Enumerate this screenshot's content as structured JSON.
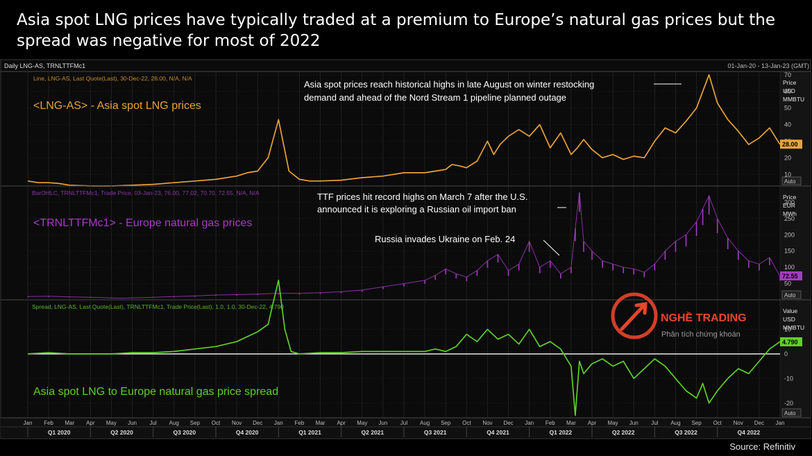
{
  "headline": "Asia spot LNG prices have typically traded at a premium to Europe’s natural gas prices but the spread was negative for most of 2022",
  "source": "Source: Refinitiv",
  "terminal": {
    "header_left": "Daily LNG-AS, TRNLTTFMc1",
    "header_right": "01-Jan-20 - 13-Jan-23 (GMT)",
    "auto_label": "Auto"
  },
  "watermark": {
    "brand": "NGHỀ TRADING",
    "tagline": "Phân tích chứng khoán",
    "color": "#e8452c"
  },
  "colors": {
    "asia": "#e8a33a",
    "europe": "#a63bc4",
    "spread": "#5fcf2a",
    "axis_bg": "#0b0b0b"
  },
  "chart_data": [
    {
      "type": "line",
      "panel": "asia",
      "series_name": "<LNG-AS> - Asia spot LNG prices",
      "legend_info": "Line, LNG-AS, Last Quote(Last), 30-Dec-22, 28.00, N/A, N/A",
      "unit_label": [
        "Price",
        "USD",
        "MMBTU"
      ],
      "yticks": [
        10,
        20,
        30,
        40,
        50,
        60,
        70
      ],
      "ylim": [
        3,
        72
      ],
      "last_value": "28.00",
      "annotation": "Asia spot prices reach historical highs in late August on winter restocking demand and ahead of the Nord Stream 1 pipeline planned outage",
      "x": [
        0,
        0.5,
        1,
        1.5,
        2,
        3,
        4,
        5,
        6,
        7,
        8,
        9,
        10,
        10.5,
        11,
        11.5,
        12,
        12.5,
        13,
        13.5,
        14,
        15,
        16,
        17,
        18,
        19,
        19.5,
        20,
        20.3,
        20.7,
        21,
        21.5,
        22,
        22.3,
        22.6,
        23,
        23.5,
        24,
        24.5,
        25,
        25.5,
        26,
        26.3,
        26.6,
        27,
        27.5,
        28,
        28.5,
        29,
        29.5,
        30,
        30.5,
        31,
        31.5,
        32,
        32.3,
        32.6,
        33,
        33.5,
        34,
        34.5,
        35,
        35.5,
        36
      ],
      "values": [
        6,
        5,
        5,
        4.5,
        3.5,
        3,
        3,
        3.5,
        4,
        5,
        6,
        7,
        9,
        11,
        12,
        20,
        43,
        12,
        7,
        6,
        6,
        6.5,
        8,
        9,
        11,
        11,
        12,
        13,
        16,
        15,
        14,
        18,
        30,
        22,
        28,
        33,
        37,
        33,
        40,
        26,
        35,
        22,
        26,
        31,
        25,
        20,
        22,
        19,
        21,
        20,
        30,
        38,
        35,
        42,
        50,
        60,
        70,
        53,
        43,
        36,
        28,
        32,
        38,
        28
      ]
    },
    {
      "type": "bar",
      "panel": "europe",
      "series_name": "<TRNLTTFMc1> - Europe natural gas prices",
      "legend_info": "BarOHLC, TRNLTTFMc1, Trade Price, 03-Jan-23, 76.00, 77.02, 70.70, 72.55, N/A, N/A",
      "unit_label": [
        "Price",
        "EUR",
        "MWh"
      ],
      "yticks": [
        50,
        100,
        150,
        200,
        250,
        300
      ],
      "ylim": [
        0,
        350
      ],
      "last_value": "72.55",
      "annotations": [
        "TTF prices hit record highs on March 7 after the U.S. announced it is exploring a Russian oil import ban",
        "Russia invades Ukraine on Feb. 24"
      ],
      "x": [
        0,
        1,
        2,
        3,
        4,
        4.5,
        5,
        6,
        7,
        8,
        9,
        10,
        11,
        12,
        13,
        14,
        15,
        16,
        17,
        18,
        19,
        19.5,
        20,
        20.5,
        21,
        21.5,
        22,
        22.5,
        23,
        23.5,
        24,
        24.5,
        25,
        25.5,
        26,
        26.2,
        26.4,
        26.6,
        27,
        27.5,
        28,
        28.5,
        29,
        29.5,
        30,
        30.5,
        31,
        31.5,
        32,
        32.3,
        32.6,
        33,
        33.5,
        34,
        34.5,
        35,
        35.5,
        36
      ],
      "values": [
        10,
        11,
        9,
        8,
        6,
        5,
        6,
        8,
        10,
        12,
        15,
        16,
        18,
        20,
        20,
        22,
        25,
        30,
        40,
        50,
        60,
        75,
        95,
        80,
        70,
        90,
        120,
        140,
        90,
        110,
        180,
        100,
        120,
        80,
        100,
        220,
        330,
        180,
        150,
        120,
        110,
        100,
        95,
        85,
        110,
        150,
        180,
        200,
        240,
        280,
        320,
        250,
        190,
        150,
        120,
        110,
        130,
        72
      ]
    },
    {
      "type": "line",
      "panel": "spread",
      "series_name": "Asia spot LNG to Europe natural gas price spread",
      "legend_info": "Spread, LNG-AS, Last Quote(Last), TRNLTTFMc1, Trade Price(Last), 1.0, 1.0, 30-Dec-22, 4.790",
      "unit_label": [
        "Value",
        "USD",
        "MMBTU"
      ],
      "yticks": [
        -20,
        -10,
        0,
        10
      ],
      "ylim": [
        -26,
        22
      ],
      "last_value": "4.790",
      "x": [
        0,
        1,
        2,
        3,
        4,
        5,
        6,
        7,
        8,
        9,
        10,
        11,
        11.5,
        12,
        12.3,
        12.6,
        13,
        14,
        15,
        16,
        17,
        18,
        19,
        19.5,
        20,
        20.5,
        21,
        21.5,
        22,
        22.5,
        23,
        23.5,
        24,
        24.5,
        25,
        25.5,
        26,
        26.2,
        26.4,
        26.6,
        27,
        27.5,
        28,
        28.5,
        29,
        29.5,
        30,
        30.5,
        31,
        31.5,
        32,
        32.3,
        32.6,
        33,
        33.5,
        34,
        34.5,
        35,
        35.5,
        36
      ],
      "values": [
        0,
        0.5,
        0,
        0,
        0,
        0.5,
        0.5,
        1,
        2,
        3,
        5,
        9,
        12,
        30,
        10,
        1,
        0,
        0.5,
        0.5,
        1,
        1,
        1,
        1,
        2,
        1,
        3,
        8,
        5,
        10,
        6,
        8,
        4,
        10,
        3,
        5,
        2,
        -5,
        -25,
        -3,
        -8,
        -4,
        -2,
        -5,
        -3,
        -10,
        -6,
        -2,
        -5,
        -10,
        -15,
        -18,
        -12,
        -20,
        -15,
        -10,
        -6,
        -8,
        -3,
        2,
        5
      ]
    }
  ],
  "x_axis": {
    "months": [
      "Jan",
      "Feb",
      "Mar",
      "Apr",
      "May",
      "Jun",
      "Jul",
      "Aug",
      "Sep",
      "Oct",
      "Nov",
      "Dec",
      "Jan",
      "Feb",
      "Mar",
      "Apr",
      "May",
      "Jun",
      "Jul",
      "Aug",
      "Sep",
      "Oct",
      "Nov",
      "Dec",
      "Jan",
      "Feb",
      "Mar",
      "Apr",
      "May",
      "Jun",
      "Jul",
      "Aug",
      "Sep",
      "Oct",
      "Nov",
      "Dec",
      "Jan"
    ],
    "quarters": [
      "Q1 2020",
      "Q2 2020",
      "Q3 2020",
      "Q4 2020",
      "Q1 2021",
      "Q2 2021",
      "Q3 2021",
      "Q4 2021",
      "Q1 2022",
      "Q2 2022",
      "Q3 2022",
      "Q4 2022"
    ]
  }
}
